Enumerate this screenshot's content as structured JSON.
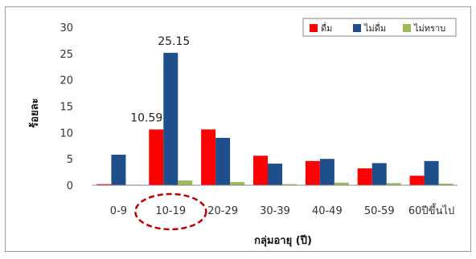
{
  "chart_data": {
    "type": "bar",
    "categories": [
      "0-9",
      "10-19",
      "20-29",
      "30-39",
      "40-49",
      "50-59",
      "60ปีขึ้นไป"
    ],
    "series": [
      {
        "name": "ดื่ม",
        "color": "#ff0000",
        "values": [
          0.2,
          10.59,
          10.6,
          5.6,
          4.6,
          3.2,
          1.8
        ]
      },
      {
        "name": "ไม่ดื่ม",
        "color": "#1f4e8c",
        "values": [
          5.8,
          25.15,
          9.0,
          4.1,
          5.0,
          4.2,
          4.6
        ]
      },
      {
        "name": "ไม่ทราบ",
        "color": "#9bbb59",
        "values": [
          0.1,
          0.9,
          0.6,
          0.2,
          0.5,
          0.4,
          0.3
        ]
      }
    ],
    "xlabel": "กลุ่มอายุ (ปี)",
    "ylabel": "ร้อยละ",
    "ylim": [
      0,
      30
    ],
    "yticks": [
      0,
      5,
      10,
      15,
      20,
      25,
      30
    ],
    "legend_position": "top-right",
    "grid": false,
    "annotations": [
      {
        "text": "10.59",
        "category": "10-19",
        "series": "ดื่ม"
      },
      {
        "text": "25.15",
        "category": "10-19",
        "series": "ไม่ดื่ม"
      }
    ],
    "highlight": {
      "category": "10-19",
      "shape": "dashed-ellipse",
      "color": "#c00000"
    }
  }
}
